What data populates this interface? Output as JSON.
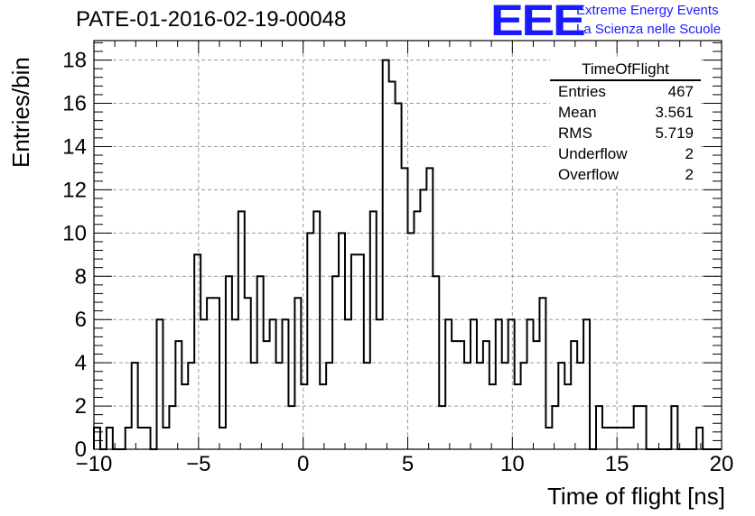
{
  "title": "PATE-01-2016-02-19-00048",
  "logo": {
    "mark": "EEE",
    "line1": "Extreme Energy Events",
    "line2": "La Scienza nelle Scuole",
    "color": "#1a1aff"
  },
  "stats": {
    "name": "TimeOfFlight",
    "rows": [
      {
        "label": "Entries",
        "value": "467"
      },
      {
        "label": "Mean",
        "value": "3.561"
      },
      {
        "label": "RMS",
        "value": "5.719"
      },
      {
        "label": "Underflow",
        "value": "2"
      },
      {
        "label": "Overflow",
        "value": "2"
      }
    ]
  },
  "chart_data": {
    "type": "bar",
    "subtype": "step-histogram",
    "xlabel": "Time of flight [ns]",
    "ylabel": "Entries/bin",
    "xlim": [
      -10,
      20
    ],
    "ylim": [
      0,
      18.9
    ],
    "grid": true,
    "bin_width": 0.3,
    "x_ticks": [
      "−10",
      "−5",
      "0",
      "5",
      "10",
      "15",
      "20"
    ],
    "y_ticks": [
      "0",
      "2",
      "4",
      "6",
      "8",
      "10",
      "12",
      "14",
      "16",
      "18"
    ],
    "x": [
      -10,
      -9.7,
      -9.4,
      -9.1,
      -8.8,
      -8.5,
      -8.2,
      -7.9,
      -7.6,
      -7.3,
      -7.0,
      -6.7,
      -6.4,
      -6.1,
      -5.8,
      -5.5,
      -5.2,
      -4.9,
      -4.6,
      -4.3,
      -4.0,
      -3.7,
      -3.4,
      -3.1,
      -2.8,
      -2.5,
      -2.2,
      -1.9,
      -1.6,
      -1.3,
      -1.0,
      -0.7,
      -0.4,
      -0.1,
      0.2,
      0.5,
      0.8,
      1.1,
      1.4,
      1.7,
      2.0,
      2.3,
      2.6,
      2.9,
      3.2,
      3.5,
      3.8,
      4.1,
      4.4,
      4.7,
      5.0,
      5.3,
      5.6,
      5.9,
      6.2,
      6.5,
      6.8,
      7.1,
      7.4,
      7.7,
      8.0,
      8.3,
      8.6,
      8.9,
      9.2,
      9.5,
      9.8,
      10.1,
      10.4,
      10.7,
      11.0,
      11.3,
      11.6,
      11.9,
      12.2,
      12.5,
      12.8,
      13.1,
      13.4,
      13.7,
      14.0,
      14.3,
      14.6,
      14.9,
      15.2,
      15.5,
      15.8,
      16.1,
      16.4,
      16.7,
      17.0,
      17.3,
      17.6,
      17.9,
      18.2,
      18.5,
      18.8,
      19.1,
      19.4,
      19.7
    ],
    "values": [
      1,
      0,
      1,
      0,
      0,
      1,
      4,
      1,
      1,
      0,
      6,
      1,
      2,
      5,
      3,
      4,
      9,
      6,
      7,
      7,
      1,
      8,
      6,
      11,
      7,
      4,
      8,
      5,
      6,
      4,
      6,
      2,
      7,
      3,
      10,
      11,
      3,
      4,
      8,
      10,
      6,
      9,
      9,
      4,
      11,
      6,
      18,
      17,
      16,
      13,
      10,
      11,
      12,
      13,
      8,
      2,
      6,
      5,
      5,
      4,
      6,
      4,
      5,
      3,
      6,
      4,
      6,
      3,
      4,
      6,
      5,
      7,
      1,
      2,
      4,
      3,
      5,
      4,
      6,
      0,
      2,
      1,
      1,
      1,
      1,
      1,
      2,
      2,
      0,
      0,
      0,
      0,
      2,
      0,
      0,
      0,
      1,
      0,
      0,
      0
    ]
  }
}
